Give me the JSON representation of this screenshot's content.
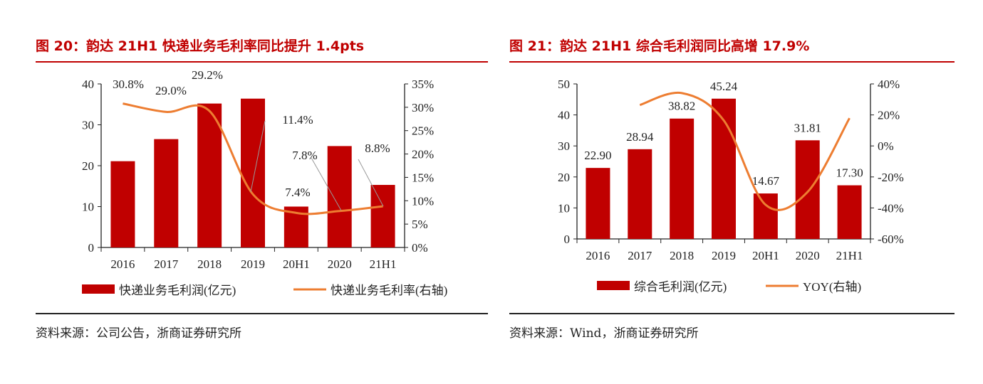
{
  "chart_data": [
    {
      "type": "bar+line",
      "title": "图 20：韵达 21H1 快递业务毛利率同比提升 1.4pts",
      "categories": [
        "2016",
        "2017",
        "2018",
        "2019",
        "20H1",
        "2020",
        "21H1"
      ],
      "series": [
        {
          "name": "快递业务毛利润(亿元)",
          "type": "bar",
          "axis": "left",
          "values": [
            21.1,
            26.5,
            35.2,
            36.4,
            10.0,
            24.8,
            15.3
          ]
        },
        {
          "name": "快递业务毛利率(右轴)",
          "type": "line",
          "axis": "right",
          "values": [
            30.8,
            29.0,
            29.2,
            11.4,
            7.4,
            7.8,
            8.8
          ],
          "labels": [
            "30.8%",
            "29.0%",
            "29.2%",
            "11.4%",
            "7.4%",
            "7.8%",
            "8.8%"
          ]
        }
      ],
      "ylim": [
        0,
        40
      ],
      "yticks": [
        "0",
        "10",
        "20",
        "30",
        "40"
      ],
      "y2lim": [
        0,
        35
      ],
      "y2ticks": [
        "0%",
        "5%",
        "10%",
        "15%",
        "20%",
        "25%",
        "30%",
        "35%"
      ],
      "legend": "bottom",
      "source": "资料来源：公司公告，浙商证券研究所"
    },
    {
      "type": "bar+line",
      "title": "图 21：韵达 21H1 综合毛利润同比高增 17.9%",
      "categories": [
        "2016",
        "2017",
        "2018",
        "2019",
        "20H1",
        "2020",
        "21H1"
      ],
      "series": [
        {
          "name": "综合毛利润(亿元)",
          "type": "bar",
          "axis": "left",
          "values": [
            22.9,
            28.94,
            38.82,
            45.24,
            14.67,
            31.81,
            17.3
          ],
          "labels": [
            "22.90",
            "28.94",
            "38.82",
            "45.24",
            "14.67",
            "31.81",
            "17.30"
          ]
        },
        {
          "name": "YOY(右轴)",
          "type": "line",
          "axis": "right",
          "values": [
            null,
            26.4,
            34.1,
            16.5,
            -38,
            -29.7,
            17.9
          ]
        }
      ],
      "ylim": [
        0,
        50
      ],
      "yticks": [
        "0",
        "10",
        "20",
        "30",
        "40",
        "50"
      ],
      "y2lim": [
        -60,
        40
      ],
      "y2ticks": [
        "-60%",
        "-40%",
        "-20%",
        "0%",
        "20%",
        "40%"
      ],
      "legend": "bottom",
      "source": "资料来源：Wind，浙商证券研究所"
    }
  ],
  "colors": {
    "bar": "#c00000",
    "line": "#ed7d31",
    "title": "#c00000"
  }
}
